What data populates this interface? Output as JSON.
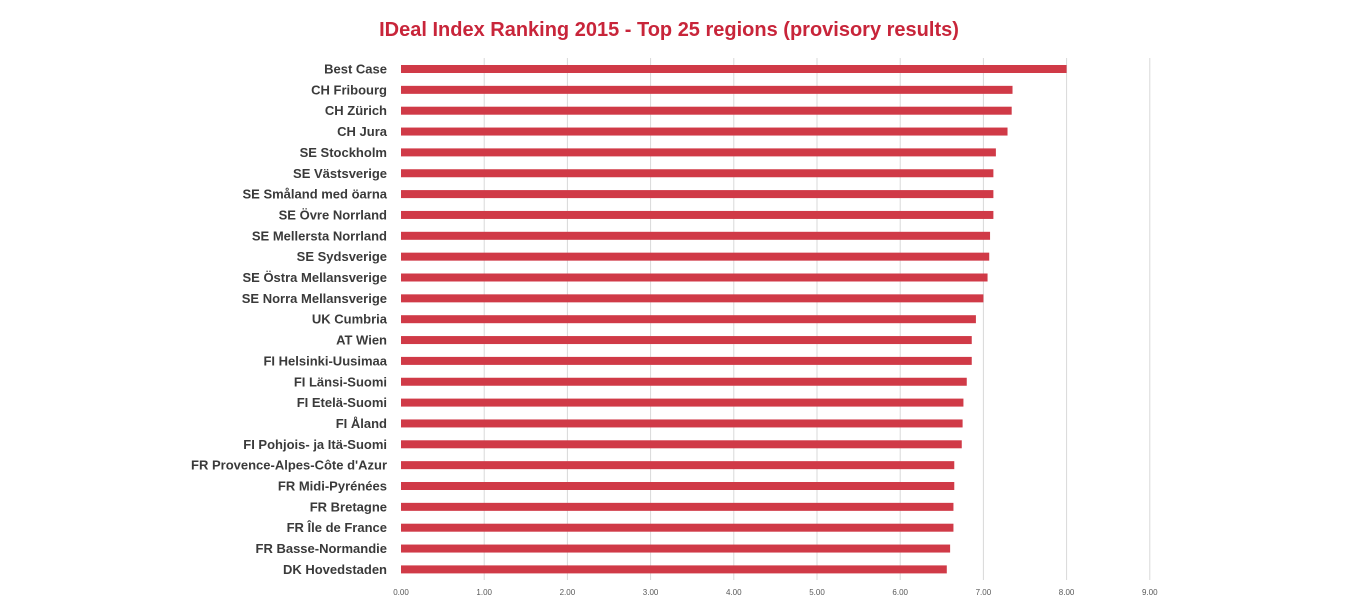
{
  "chart_data": {
    "type": "bar",
    "orientation": "horizontal",
    "title": "IDeal Index Ranking 2015 - Top 25 regions (provisory results)",
    "xlabel": "",
    "ylabel": "",
    "xlim": [
      0,
      9
    ],
    "x_ticks": [
      "0.00",
      "1.00",
      "2.00",
      "3.00",
      "4.00",
      "5.00",
      "6.00",
      "7.00",
      "8.00",
      "9.00"
    ],
    "grid": "vertical",
    "legend": "none",
    "categories": [
      "Best Case",
      "CH Fribourg",
      "CH Zürich",
      "CH Jura",
      "SE Stockholm",
      "SE Västsverige",
      "SE Småland med öarna",
      "SE Övre Norrland",
      "SE Mellersta Norrland",
      "SE Sydsverige",
      "SE Östra Mellansverige",
      "SE Norra Mellansverige",
      "UK Cumbria",
      "AT Wien",
      "FI Helsinki-Uusimaa",
      "FI Länsi-Suomi",
      "FI Etelä-Suomi",
      "FI Åland",
      "FI Pohjois- ja Itä-Suomi",
      "FR Provence-Alpes-Côte d'Azur",
      "FR Midi-Pyrénées",
      "FR Bretagne",
      "FR Île de France",
      "FR Basse-Normandie",
      "DK Hovedstaden"
    ],
    "values": [
      8.0,
      7.35,
      7.34,
      7.29,
      7.15,
      7.12,
      7.12,
      7.12,
      7.08,
      7.07,
      7.05,
      7.0,
      6.91,
      6.86,
      6.86,
      6.8,
      6.76,
      6.75,
      6.74,
      6.65,
      6.65,
      6.64,
      6.64,
      6.6,
      6.56
    ]
  },
  "colors": {
    "bar": "#d03a47",
    "title": "#c8253a",
    "category_label": "#3a3a3a",
    "tick_label": "#595959",
    "grid": "#d9d9d9"
  }
}
